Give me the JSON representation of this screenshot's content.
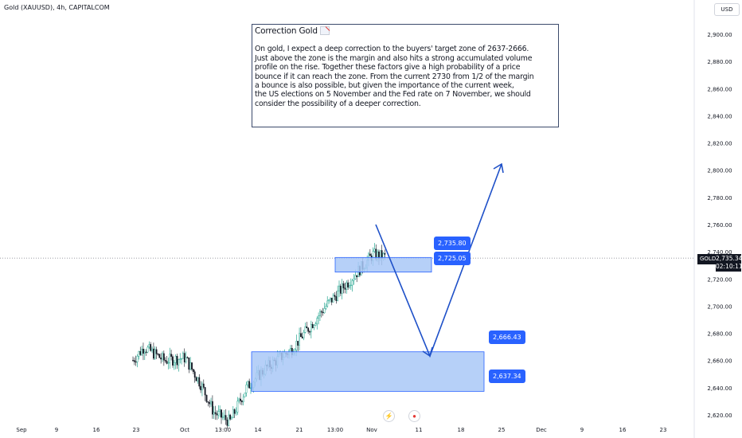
{
  "symbol_label": "Gold (XAUUSD), 4h, CAPITALCOM",
  "currency_label": "USD",
  "note": {
    "title": "Correction Gold",
    "title_icon": "chart-decreasing-icon",
    "lines": [
      "On gold, I expect a deep correction to the buyers' target zone of 2637-2666.",
      "Just above the zone is the margin and also hits a strong accumulated volume",
      "profile on the rise. Together these factors give a high probability of a price",
      "bounce if it can reach the zone. From the current 2730 from 1/2 of the margin",
      "a bounce is also possible, but given the importance of the current week,",
      "the US elections on 5 November and the Fed rate on 7 November, we should",
      "consider the possibility of a deeper correction."
    ]
  },
  "current_price": {
    "ticker": "GOLD",
    "value": "2,735.34",
    "countdown": "02:10:11"
  },
  "zone_labels": {
    "upper_top": "2,735.80",
    "upper_bottom": "2,725.05",
    "lower_top": "2,666.43",
    "lower_bottom": "2,637.34"
  },
  "colors": {
    "up": "#089981",
    "down": "#131722",
    "zone_fill": "#a9c8f7",
    "zone_stroke": "#2962ff",
    "arrow": "#1e50c8"
  },
  "chart_data": {
    "type": "candlestick",
    "timeframe": "4h",
    "y_axis": {
      "ticks": [
        "2,620.00",
        "2,640.00",
        "2,660.00",
        "2,680.00",
        "2,700.00",
        "2,720.00",
        "2,740.00",
        "2,760.00",
        "2,780.00",
        "2,800.00",
        "2,820.00",
        "2,840.00",
        "2,860.00",
        "2,880.00",
        "2,900.00"
      ],
      "range": [
        2615,
        2915
      ]
    },
    "x_axis": {
      "ticks": [
        "Sep",
        "9",
        "16",
        "23",
        "Oct",
        "13:00",
        "14",
        "21",
        "13:00",
        "Nov",
        "11",
        "18",
        "25",
        "Dec",
        "9",
        "16",
        "23"
      ]
    },
    "price_path": [
      [
        0,
        2620
      ],
      [
        0.25,
        2632
      ],
      [
        0.5,
        2660
      ],
      [
        1,
        2672
      ],
      [
        1.4,
        2683
      ],
      [
        1.7,
        2660
      ],
      [
        2,
        2668
      ],
      [
        2.5,
        2652
      ],
      [
        3,
        2670
      ],
      [
        3.5,
        2660
      ],
      [
        4,
        2662
      ],
      [
        4.4,
        2642
      ],
      [
        4.7,
        2622
      ],
      [
        5.1,
        2615
      ],
      [
        5.5,
        2640
      ],
      [
        6,
        2655
      ],
      [
        6.6,
        2668
      ],
      [
        7.5,
        2702
      ],
      [
        8,
        2718
      ],
      [
        8.6,
        2738
      ],
      [
        9.1,
        2735
      ],
      [
        9.5,
        2722
      ],
      [
        10,
        2733
      ],
      [
        10.6,
        2747
      ],
      [
        11.2,
        2742
      ],
      [
        11.8,
        2733
      ],
      [
        12.3,
        2752
      ],
      [
        12.8,
        2772
      ],
      [
        13.3,
        2786
      ],
      [
        13.6,
        2788
      ],
      [
        13.9,
        2772
      ],
      [
        14.2,
        2758
      ],
      [
        14.6,
        2742
      ],
      [
        15,
        2735
      ]
    ],
    "zones": [
      {
        "name": "upper",
        "top": 2735.8,
        "bottom": 2725.05
      },
      {
        "name": "lower",
        "top": 2666.43,
        "bottom": 2637.34
      }
    ],
    "projection": [
      {
        "date": "Nov 1",
        "price": 2760
      },
      {
        "date": "Nov 11",
        "price": 2663
      },
      {
        "date": "Nov 25",
        "price": 2805
      }
    ],
    "events": [
      "US elections",
      "Fed rate"
    ]
  }
}
